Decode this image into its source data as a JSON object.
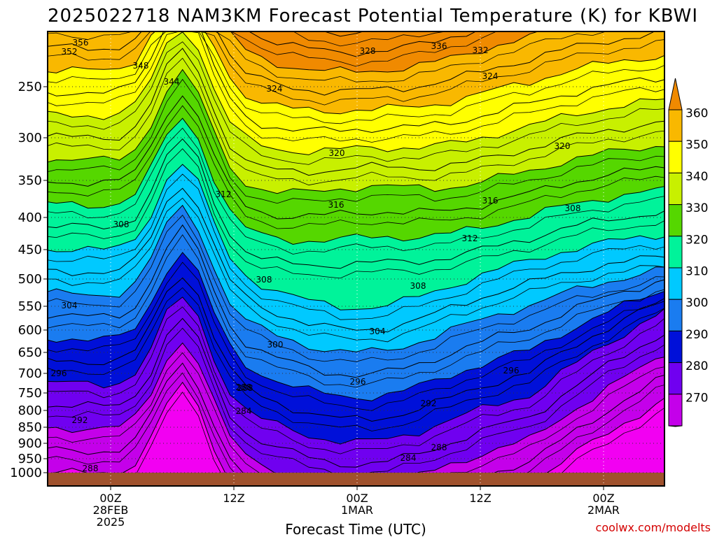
{
  "chart_data": {
    "type": "time-height contour",
    "title": "2025022718 NAM3KM Forecast Potential Temperature (K) for KBWI",
    "xlabel": "Forecast Time (UTC)",
    "credit": "coolwx.com/modelts",
    "y_ticks": [
      "250",
      "300",
      "350",
      "400",
      "450",
      "500",
      "550",
      "600",
      "650",
      "700",
      "750",
      "800",
      "850",
      "900",
      "950",
      "1000"
    ],
    "x_ticks": [
      {
        "lines": [
          "00Z",
          "28FEB",
          "2025"
        ]
      },
      {
        "lines": [
          "12Z"
        ]
      },
      {
        "lines": [
          "00Z",
          "1MAR"
        ]
      },
      {
        "lines": [
          "12Z"
        ]
      },
      {
        "lines": [
          "00Z",
          "2MAR"
        ]
      }
    ],
    "colorbar": {
      "ticks": [
        "360",
        "350",
        "340",
        "330",
        "320",
        "310",
        "300",
        "290",
        "280",
        "270"
      ],
      "colors": [
        "#f08a00",
        "#f9b800",
        "#ffff00",
        "#c8f000",
        "#55d700",
        "#00f39a",
        "#00c9ff",
        "#1a7cf0",
        "#0010d9",
        "#7000f0",
        "#c400ea",
        "#f200f2"
      ]
    },
    "contour_labels": [
      "356",
      "352",
      "348",
      "344",
      "324",
      "328",
      "336",
      "332",
      "324",
      "320",
      "320",
      "316",
      "316",
      "312",
      "312",
      "308",
      "308",
      "308",
      "308",
      "304",
      "304",
      "300",
      "296",
      "296",
      "296",
      "292",
      "292",
      "288",
      "288",
      "288",
      "284",
      "284",
      "288"
    ],
    "ground_color": "#a0522d",
    "grid": true
  }
}
